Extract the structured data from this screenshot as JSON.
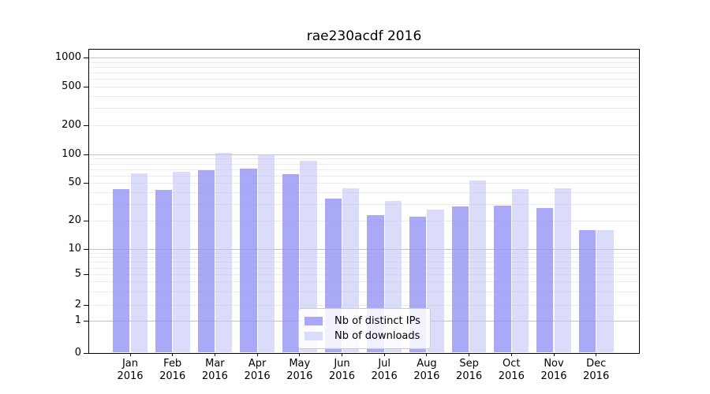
{
  "title": "rae230acdf 2016",
  "chart_data": {
    "type": "bar",
    "title": "rae230acdf 2016",
    "categories": [
      "Jan 2016",
      "Feb 2016",
      "Mar 2016",
      "Apr 2016",
      "May 2016",
      "Jun 2016",
      "Jul 2016",
      "Aug 2016",
      "Sep 2016",
      "Oct 2016",
      "Nov 2016",
      "Dec 2016"
    ],
    "series": [
      {
        "name": "Nb of distinct IPs",
        "color": "#a9a9f7",
        "fill": "rgba(145,145,245,0.78)",
        "values": [
          43,
          42,
          68,
          71,
          62,
          34,
          23,
          22,
          28,
          29,
          27,
          16
        ]
      },
      {
        "name": "Nb of downloads",
        "color": "#dbdbfa",
        "fill": "rgba(195,195,247,0.60)",
        "values": [
          63,
          66,
          104,
          100,
          85,
          44,
          32,
          26,
          53,
          43,
          44,
          16
        ]
      }
    ],
    "yscale": "symlog",
    "ylabel": "",
    "xlabel": "",
    "y_ticks": [
      0,
      1,
      2,
      5,
      10,
      20,
      50,
      100,
      200,
      500,
      1000
    ],
    "major_grid_values": [
      1,
      10,
      100,
      1000
    ],
    "minor_grid_values": [
      2,
      3,
      4,
      5,
      6,
      7,
      8,
      9,
      20,
      30,
      40,
      50,
      60,
      70,
      80,
      90,
      200,
      300,
      400,
      500,
      600,
      700,
      800,
      900
    ],
    "ylim": [
      0,
      1200
    ],
    "grid": true,
    "legend_position": "lower center",
    "colors": {
      "major_grid": "#c3c3c3",
      "minor_grid": "#ececec",
      "spine": "#000000",
      "text": "#000000",
      "legend_border": "#cccccc"
    }
  }
}
